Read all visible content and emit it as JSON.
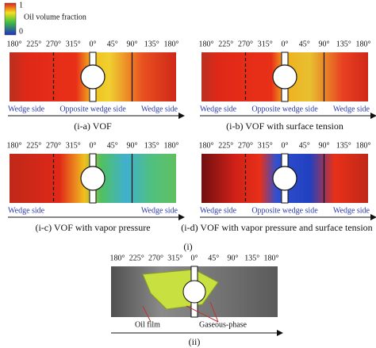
{
  "colorbar": {
    "max": 1,
    "label": "Oil volume fraction",
    "min": 0
  },
  "panels": [
    {
      "angles": [
        "180°",
        "225°",
        "270°",
        "315°",
        "0°",
        "45°",
        "90°",
        "135°",
        "180°"
      ],
      "side_labels": [
        "Wedge side",
        "Opposite wedge side",
        "Wedge side"
      ],
      "caption": "(i-a) VOF"
    },
    {
      "angles": [
        "180°",
        "225°",
        "270°",
        "315°",
        "0°",
        "45°",
        "90°",
        "135°",
        "180°"
      ],
      "side_labels": [
        "Wedge side",
        "Opposite wedge side",
        "Wedge side"
      ],
      "caption": "(i-b) VOF with surface tension"
    },
    {
      "angles": [
        "180°",
        "225°",
        "270°",
        "315°",
        "0°",
        "45°",
        "90°",
        "135°",
        "180°"
      ],
      "side_labels": [
        "Wedge side",
        "Wedge side"
      ],
      "caption": "(i-c) VOF with vapor pressure"
    },
    {
      "angles": [
        "180°",
        "225°",
        "270°",
        "315°",
        "0°",
        "45°",
        "90°",
        "135°",
        "180°"
      ],
      "side_labels": [
        "Wedge side",
        "Opposite wedge side",
        "Wedge side"
      ],
      "caption": "(i-d) VOF with vapor pressure and surface tension"
    }
  ],
  "group_label": "(i)",
  "photo": {
    "angles": [
      "180°",
      "225°",
      "270°",
      "315°",
      "0°",
      "45°",
      "90°",
      "135°",
      "180°"
    ],
    "annotations": [
      "Oil film",
      "Gaseous-phase"
    ],
    "caption": "(ii)"
  }
}
